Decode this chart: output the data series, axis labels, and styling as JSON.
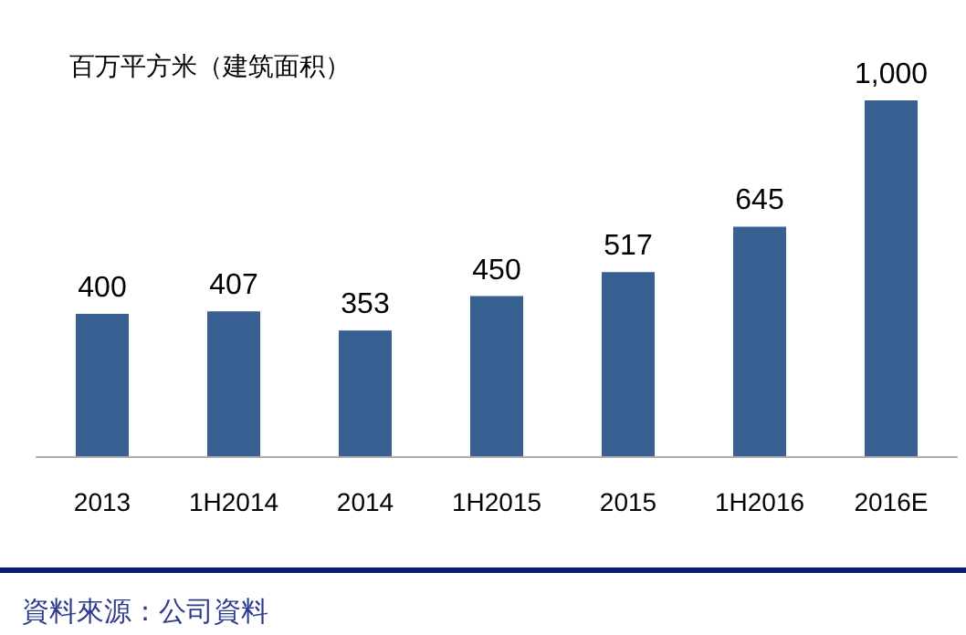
{
  "chart_data": {
    "type": "bar",
    "ylabel": "百万平方米（建筑面积）",
    "categories": [
      "2013",
      "1H2014",
      "2014",
      "1H2015",
      "2015",
      "1H2016",
      "2016E"
    ],
    "values": [
      400,
      407,
      353,
      450,
      517,
      645,
      1000
    ],
    "value_labels": [
      "400",
      "407",
      "353",
      "450",
      "517",
      "645",
      "1,000"
    ],
    "color": "#375f92",
    "annotations": [
      "資料來源：公司資料"
    ]
  }
}
